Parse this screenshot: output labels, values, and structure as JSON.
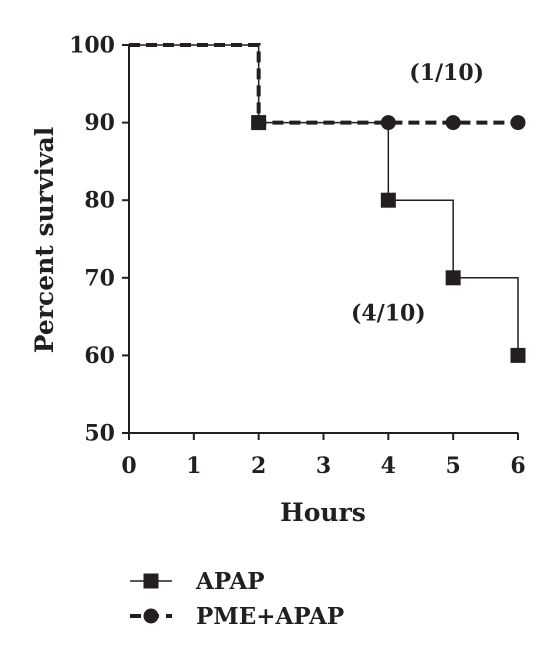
{
  "chart_data": {
    "type": "line",
    "step": true,
    "xlabel": "Hours",
    "ylabel": "Percent survival",
    "xlim": [
      0,
      6
    ],
    "ylim": [
      50,
      100
    ],
    "xticks": [
      "0",
      "1",
      "2",
      "3",
      "4",
      "5",
      "6"
    ],
    "yticks": [
      "50",
      "60",
      "70",
      "80",
      "90",
      "100"
    ],
    "grid": false,
    "legend_position": "bottom",
    "series": [
      {
        "name": "APAP",
        "marker": "square",
        "line_style": "solid",
        "color": "#231f20",
        "x": [
          0,
          2,
          4,
          5,
          6
        ],
        "y": [
          100,
          90,
          80,
          70,
          60
        ]
      },
      {
        "name": "PME+APAP",
        "marker": "circle",
        "line_style": "dashed",
        "color": "#231f20",
        "x": [
          0,
          2,
          4,
          5,
          6
        ],
        "y": [
          100,
          90,
          90,
          90,
          90
        ]
      }
    ],
    "annotations": [
      {
        "text": "(1/10)",
        "x": 4.9,
        "y": 95.5
      },
      {
        "text": "(4/10)",
        "x": 4.0,
        "y": 64.5
      }
    ]
  }
}
